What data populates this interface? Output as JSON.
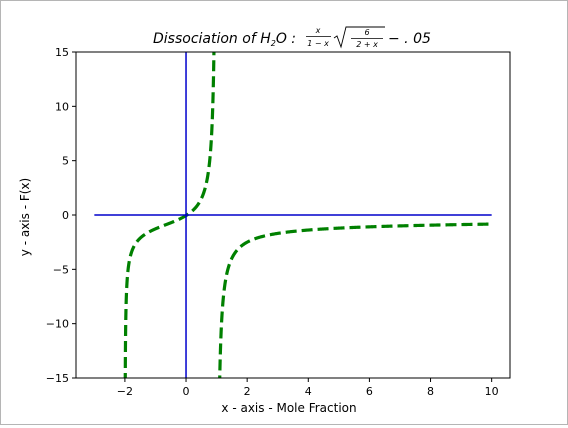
{
  "chart_data": {
    "type": "line",
    "title": "Dissociation of H2O : x/(1−x) √(6/(2+x)) − .05",
    "title_parts": {
      "lead": "Dissociation of H",
      "sub": "2",
      "mid": "O : ",
      "frac1_num": "x",
      "frac1_den": "1 − x",
      "frac2_num": "6",
      "frac2_den": "2 + x",
      "tail": "− . 05"
    },
    "xlabel": "x - axis - Mole Fraction",
    "ylabel": "y - axis - F(x)",
    "xlim": [
      -3.6,
      10.6
    ],
    "ylim": [
      -15,
      15
    ],
    "xticks": [
      -2,
      0,
      2,
      4,
      6,
      8,
      10
    ],
    "xtick_labels": [
      "−2",
      "0",
      "2",
      "4",
      "6",
      "8",
      "10"
    ],
    "yticks": [
      -15,
      -10,
      -5,
      0,
      5,
      10,
      15
    ],
    "ytick_labels": [
      "−15",
      "−10",
      "−5",
      "0",
      "5",
      "10",
      "15"
    ],
    "grid": false,
    "series": [
      {
        "style": "dashed",
        "color": "#008000",
        "function": "x/(1-x)*sqrt(6/(2+x)) - 0.05",
        "x": [
          -1.99,
          -1.9,
          -1.5,
          -1.0,
          -0.5,
          0.0,
          0.3,
          0.5,
          0.7,
          0.8,
          0.9,
          1.1,
          1.3,
          2.0,
          4.0,
          6.0,
          8.0,
          10.0
        ],
        "y": [
          -14.5,
          -3.5,
          -1.5,
          -1.3,
          -0.7,
          -0.05,
          0.6,
          1.5,
          3.8,
          6.8,
          15.0,
          -13.6,
          -5.1,
          -2.5,
          -1.6,
          -1.05,
          -0.85,
          -0.8
        ]
      },
      {
        "style": "solid",
        "color": "#0000cc",
        "x": [
          -3,
          10
        ],
        "y": [
          0,
          0
        ]
      },
      {
        "style": "solid",
        "color": "#0000cc",
        "x": [
          0,
          0
        ],
        "y": [
          -15,
          15
        ]
      }
    ]
  }
}
